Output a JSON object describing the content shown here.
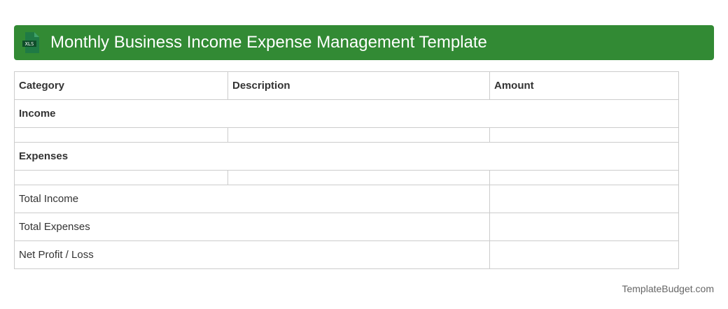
{
  "title": "Monthly Business Income Expense Management Template",
  "icon_label": "XLS",
  "headers": [
    "Category",
    "Description",
    "Amount"
  ],
  "sections": {
    "income": "Income",
    "expenses": "Expenses"
  },
  "totals": [
    "Total Income",
    "Total Expenses",
    "Net Profit / Loss"
  ],
  "footer": "TemplateBudget.com",
  "colors": {
    "banner": "#328a34"
  }
}
